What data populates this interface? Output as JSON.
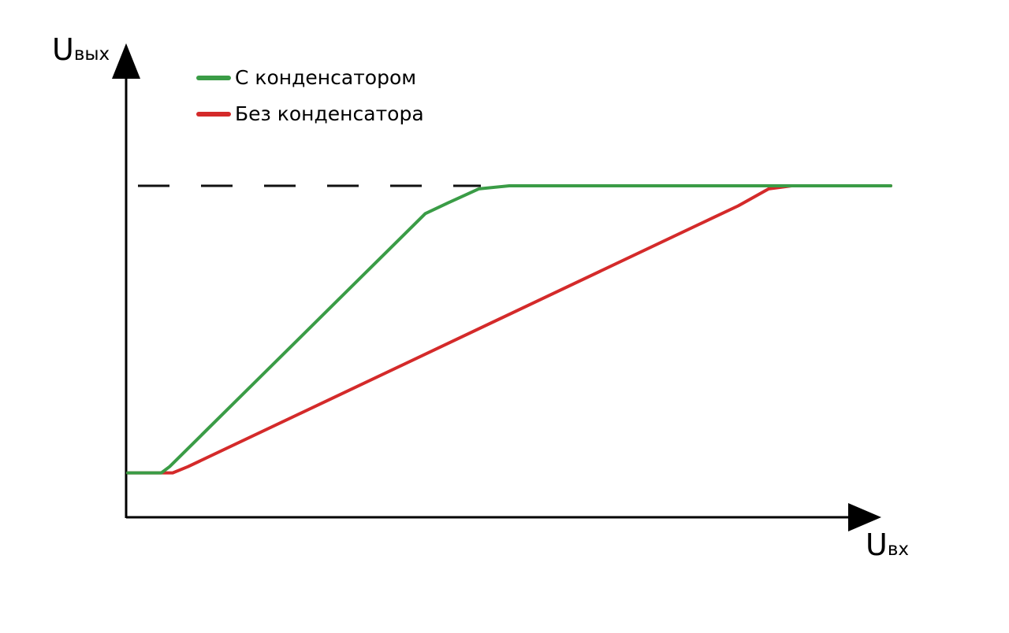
{
  "chart_data": {
    "type": "line",
    "title": "",
    "ylabel": {
      "main": "U",
      "sub": "вых"
    },
    "xlabel": {
      "main": "U",
      "sub": "вх"
    },
    "xlim": [
      0,
      100
    ],
    "ylim": [
      0,
      100
    ],
    "grid": false,
    "legend_position": "top-left",
    "saturation_level": 100,
    "series": [
      {
        "name": "С конденсатором",
        "color": "#3a9c46",
        "points": [
          [
            0,
            7
          ],
          [
            4.4,
            7
          ],
          [
            5.5,
            9
          ],
          [
            39,
            91
          ],
          [
            42,
            94.5
          ],
          [
            46,
            99
          ],
          [
            50,
            100
          ],
          [
            100,
            100
          ]
        ]
      },
      {
        "name": "Без конденсатора",
        "color": "#d42a2a",
        "points": [
          [
            0,
            7
          ],
          [
            5.9,
            7
          ],
          [
            7.9,
            9
          ],
          [
            77,
            90
          ],
          [
            80,
            93.5
          ],
          [
            84,
            99
          ],
          [
            87,
            100
          ],
          [
            100,
            100
          ]
        ]
      }
    ]
  }
}
